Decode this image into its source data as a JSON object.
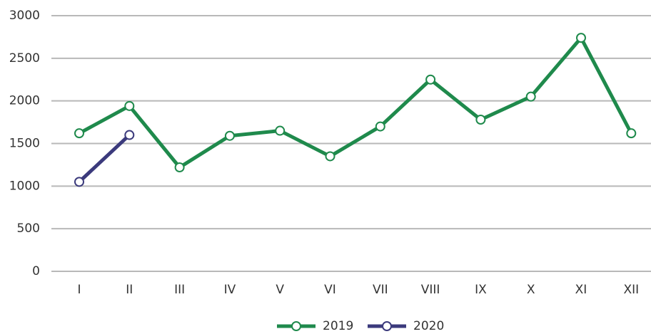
{
  "chart_data": {
    "type": "line",
    "categories": [
      "I",
      "II",
      "III",
      "IV",
      "V",
      "VI",
      "VII",
      "VIII",
      "IX",
      "X",
      "XI",
      "XII"
    ],
    "series": [
      {
        "name": "2019",
        "color": "#1f8a4c",
        "values": [
          1620,
          1940,
          1220,
          1590,
          1650,
          1350,
          1700,
          2250,
          1780,
          2050,
          2740,
          1620
        ]
      },
      {
        "name": "2020",
        "color": "#3b3a7c",
        "values": [
          1050,
          1600,
          null,
          null,
          null,
          null,
          null,
          null,
          null,
          null,
          null,
          null
        ]
      }
    ],
    "ylim": [
      0,
      3000
    ],
    "yticks": [
      0,
      500,
      1000,
      1500,
      2000,
      2500,
      3000
    ],
    "grid": true,
    "legend": "bottom"
  }
}
